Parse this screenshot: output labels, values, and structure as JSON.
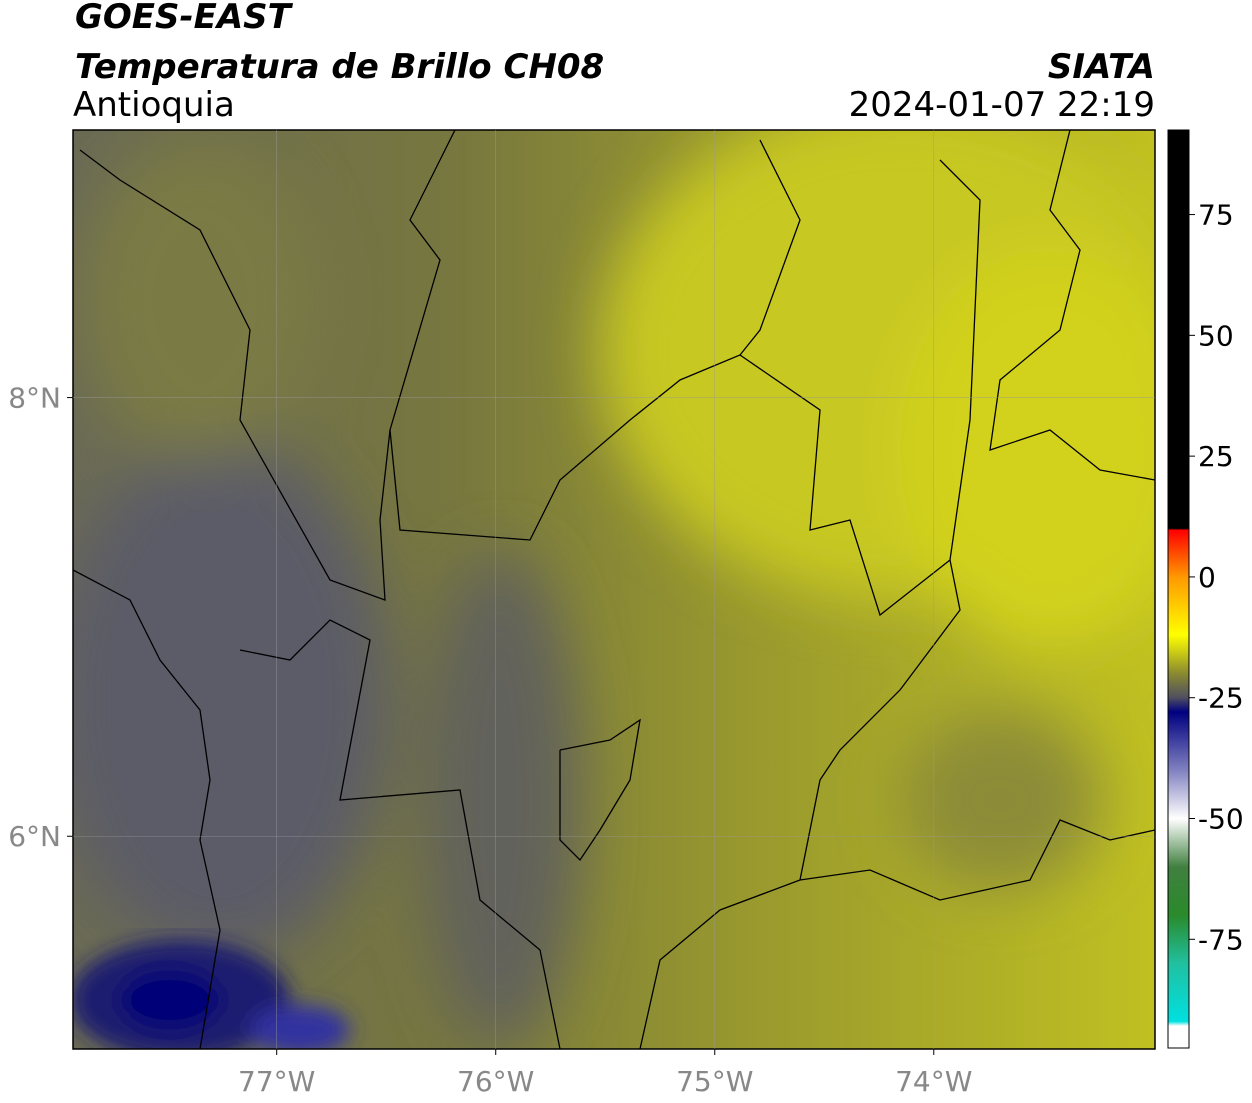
{
  "header": {
    "title": "GOES-EAST",
    "subtitle": "Temperatura de Brillo CH08",
    "org": "SIATA",
    "region": "Antioquia",
    "datetime": "2024-01-07 22:19"
  },
  "map": {
    "xlim": [
      -77.93,
      -72.99
    ],
    "ylim": [
      5.03,
      9.22
    ],
    "xticks": [
      {
        "value": -77,
        "label": "77°W"
      },
      {
        "value": -76,
        "label": "76°W"
      },
      {
        "value": -75,
        "label": "75°W"
      },
      {
        "value": -74,
        "label": "74°W"
      }
    ],
    "yticks": [
      {
        "value": 8,
        "label": "8°N"
      },
      {
        "value": 6,
        "label": "6°N"
      }
    ],
    "grid": true
  },
  "colorbar": {
    "lim": [
      -97.5,
      92.5
    ],
    "ticks": [
      75,
      50,
      25,
      0,
      -25,
      -50,
      -75
    ]
  }
}
